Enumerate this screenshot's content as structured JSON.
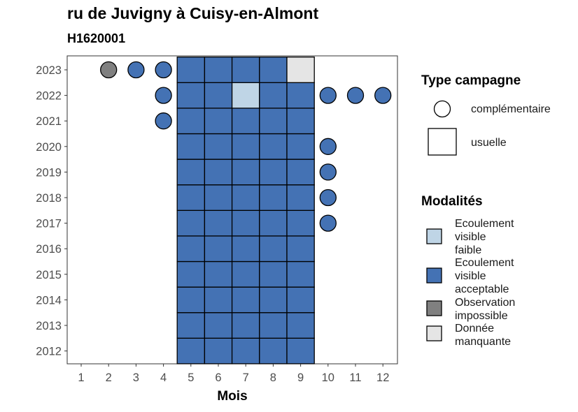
{
  "title": "ru de Juvigny à Cuisy-en-Almont",
  "subtitle": "H1620001",
  "chart_data": {
    "type": "heatmap",
    "xlabel": "Mois",
    "ylabel": "",
    "x_ticks": [
      "1",
      "2",
      "3",
      "4",
      "5",
      "6",
      "7",
      "8",
      "9",
      "10",
      "11",
      "12"
    ],
    "y_ticks": [
      "2012",
      "2013",
      "2014",
      "2015",
      "2016",
      "2017",
      "2018",
      "2019",
      "2020",
      "2021",
      "2022",
      "2023"
    ],
    "colors": {
      "Ecoulement visible faible": "#bfd5e6",
      "Ecoulement visible acceptable": "#4472b4",
      "Observation impossible": "#808080",
      "Donnée manquante": "#e5e5e5"
    },
    "cells": [
      {
        "year": 2012,
        "month": 5,
        "type": "usuelle",
        "modalite": "Ecoulement visible acceptable"
      },
      {
        "year": 2012,
        "month": 6,
        "type": "usuelle",
        "modalite": "Ecoulement visible acceptable"
      },
      {
        "year": 2012,
        "month": 7,
        "type": "usuelle",
        "modalite": "Ecoulement visible acceptable"
      },
      {
        "year": 2012,
        "month": 8,
        "type": "usuelle",
        "modalite": "Ecoulement visible acceptable"
      },
      {
        "year": 2012,
        "month": 9,
        "type": "usuelle",
        "modalite": "Ecoulement visible acceptable"
      },
      {
        "year": 2013,
        "month": 5,
        "type": "usuelle",
        "modalite": "Ecoulement visible acceptable"
      },
      {
        "year": 2013,
        "month": 6,
        "type": "usuelle",
        "modalite": "Ecoulement visible acceptable"
      },
      {
        "year": 2013,
        "month": 7,
        "type": "usuelle",
        "modalite": "Ecoulement visible acceptable"
      },
      {
        "year": 2013,
        "month": 8,
        "type": "usuelle",
        "modalite": "Ecoulement visible acceptable"
      },
      {
        "year": 2013,
        "month": 9,
        "type": "usuelle",
        "modalite": "Ecoulement visible acceptable"
      },
      {
        "year": 2014,
        "month": 5,
        "type": "usuelle",
        "modalite": "Ecoulement visible acceptable"
      },
      {
        "year": 2014,
        "month": 6,
        "type": "usuelle",
        "modalite": "Ecoulement visible acceptable"
      },
      {
        "year": 2014,
        "month": 7,
        "type": "usuelle",
        "modalite": "Ecoulement visible acceptable"
      },
      {
        "year": 2014,
        "month": 8,
        "type": "usuelle",
        "modalite": "Ecoulement visible acceptable"
      },
      {
        "year": 2014,
        "month": 9,
        "type": "usuelle",
        "modalite": "Ecoulement visible acceptable"
      },
      {
        "year": 2015,
        "month": 5,
        "type": "usuelle",
        "modalite": "Ecoulement visible acceptable"
      },
      {
        "year": 2015,
        "month": 6,
        "type": "usuelle",
        "modalite": "Ecoulement visible acceptable"
      },
      {
        "year": 2015,
        "month": 7,
        "type": "usuelle",
        "modalite": "Ecoulement visible acceptable"
      },
      {
        "year": 2015,
        "month": 8,
        "type": "usuelle",
        "modalite": "Ecoulement visible acceptable"
      },
      {
        "year": 2015,
        "month": 9,
        "type": "usuelle",
        "modalite": "Ecoulement visible acceptable"
      },
      {
        "year": 2016,
        "month": 5,
        "type": "usuelle",
        "modalite": "Ecoulement visible acceptable"
      },
      {
        "year": 2016,
        "month": 6,
        "type": "usuelle",
        "modalite": "Ecoulement visible acceptable"
      },
      {
        "year": 2016,
        "month": 7,
        "type": "usuelle",
        "modalite": "Ecoulement visible acceptable"
      },
      {
        "year": 2016,
        "month": 8,
        "type": "usuelle",
        "modalite": "Ecoulement visible acceptable"
      },
      {
        "year": 2016,
        "month": 9,
        "type": "usuelle",
        "modalite": "Ecoulement visible acceptable"
      },
      {
        "year": 2017,
        "month": 5,
        "type": "usuelle",
        "modalite": "Ecoulement visible acceptable"
      },
      {
        "year": 2017,
        "month": 6,
        "type": "usuelle",
        "modalite": "Ecoulement visible acceptable"
      },
      {
        "year": 2017,
        "month": 7,
        "type": "usuelle",
        "modalite": "Ecoulement visible acceptable"
      },
      {
        "year": 2017,
        "month": 8,
        "type": "usuelle",
        "modalite": "Ecoulement visible acceptable"
      },
      {
        "year": 2017,
        "month": 9,
        "type": "usuelle",
        "modalite": "Ecoulement visible acceptable"
      },
      {
        "year": 2017,
        "month": 10,
        "type": "complémentaire",
        "modalite": "Ecoulement visible acceptable"
      },
      {
        "year": 2018,
        "month": 5,
        "type": "usuelle",
        "modalite": "Ecoulement visible acceptable"
      },
      {
        "year": 2018,
        "month": 6,
        "type": "usuelle",
        "modalite": "Ecoulement visible acceptable"
      },
      {
        "year": 2018,
        "month": 7,
        "type": "usuelle",
        "modalite": "Ecoulement visible acceptable"
      },
      {
        "year": 2018,
        "month": 8,
        "type": "usuelle",
        "modalite": "Ecoulement visible acceptable"
      },
      {
        "year": 2018,
        "month": 9,
        "type": "usuelle",
        "modalite": "Ecoulement visible acceptable"
      },
      {
        "year": 2018,
        "month": 10,
        "type": "complémentaire",
        "modalite": "Ecoulement visible acceptable"
      },
      {
        "year": 2019,
        "month": 5,
        "type": "usuelle",
        "modalite": "Ecoulement visible acceptable"
      },
      {
        "year": 2019,
        "month": 6,
        "type": "usuelle",
        "modalite": "Ecoulement visible acceptable"
      },
      {
        "year": 2019,
        "month": 7,
        "type": "usuelle",
        "modalite": "Ecoulement visible acceptable"
      },
      {
        "year": 2019,
        "month": 8,
        "type": "usuelle",
        "modalite": "Ecoulement visible acceptable"
      },
      {
        "year": 2019,
        "month": 9,
        "type": "usuelle",
        "modalite": "Ecoulement visible acceptable"
      },
      {
        "year": 2019,
        "month": 10,
        "type": "complémentaire",
        "modalite": "Ecoulement visible acceptable"
      },
      {
        "year": 2020,
        "month": 5,
        "type": "usuelle",
        "modalite": "Ecoulement visible acceptable"
      },
      {
        "year": 2020,
        "month": 6,
        "type": "usuelle",
        "modalite": "Ecoulement visible acceptable"
      },
      {
        "year": 2020,
        "month": 7,
        "type": "usuelle",
        "modalite": "Ecoulement visible acceptable"
      },
      {
        "year": 2020,
        "month": 8,
        "type": "usuelle",
        "modalite": "Ecoulement visible acceptable"
      },
      {
        "year": 2020,
        "month": 9,
        "type": "usuelle",
        "modalite": "Ecoulement visible acceptable"
      },
      {
        "year": 2020,
        "month": 10,
        "type": "complémentaire",
        "modalite": "Ecoulement visible acceptable"
      },
      {
        "year": 2021,
        "month": 4,
        "type": "complémentaire",
        "modalite": "Ecoulement visible acceptable"
      },
      {
        "year": 2021,
        "month": 5,
        "type": "usuelle",
        "modalite": "Ecoulement visible acceptable"
      },
      {
        "year": 2021,
        "month": 6,
        "type": "usuelle",
        "modalite": "Ecoulement visible acceptable"
      },
      {
        "year": 2021,
        "month": 7,
        "type": "usuelle",
        "modalite": "Ecoulement visible acceptable"
      },
      {
        "year": 2021,
        "month": 8,
        "type": "usuelle",
        "modalite": "Ecoulement visible acceptable"
      },
      {
        "year": 2021,
        "month": 9,
        "type": "usuelle",
        "modalite": "Ecoulement visible acceptable"
      },
      {
        "year": 2022,
        "month": 4,
        "type": "complémentaire",
        "modalite": "Ecoulement visible acceptable"
      },
      {
        "year": 2022,
        "month": 5,
        "type": "usuelle",
        "modalite": "Ecoulement visible acceptable"
      },
      {
        "year": 2022,
        "month": 6,
        "type": "usuelle",
        "modalite": "Ecoulement visible acceptable"
      },
      {
        "year": 2022,
        "month": 7,
        "type": "usuelle",
        "modalite": "Ecoulement visible faible"
      },
      {
        "year": 2022,
        "month": 8,
        "type": "usuelle",
        "modalite": "Ecoulement visible acceptable"
      },
      {
        "year": 2022,
        "month": 9,
        "type": "usuelle",
        "modalite": "Ecoulement visible acceptable"
      },
      {
        "year": 2022,
        "month": 10,
        "type": "complémentaire",
        "modalite": "Ecoulement visible acceptable"
      },
      {
        "year": 2022,
        "month": 11,
        "type": "complémentaire",
        "modalite": "Ecoulement visible acceptable"
      },
      {
        "year": 2022,
        "month": 12,
        "type": "complémentaire",
        "modalite": "Ecoulement visible acceptable"
      },
      {
        "year": 2023,
        "month": 2,
        "type": "complémentaire",
        "modalite": "Observation impossible"
      },
      {
        "year": 2023,
        "month": 3,
        "type": "complémentaire",
        "modalite": "Ecoulement visible acceptable"
      },
      {
        "year": 2023,
        "month": 4,
        "type": "complémentaire",
        "modalite": "Ecoulement visible acceptable"
      },
      {
        "year": 2023,
        "month": 5,
        "type": "usuelle",
        "modalite": "Ecoulement visible acceptable"
      },
      {
        "year": 2023,
        "month": 6,
        "type": "usuelle",
        "modalite": "Ecoulement visible acceptable"
      },
      {
        "year": 2023,
        "month": 7,
        "type": "usuelle",
        "modalite": "Ecoulement visible acceptable"
      },
      {
        "year": 2023,
        "month": 8,
        "type": "usuelle",
        "modalite": "Ecoulement visible acceptable"
      },
      {
        "year": 2023,
        "month": 9,
        "type": "usuelle",
        "modalite": "Donnée manquante"
      }
    ]
  },
  "legend": {
    "type_title": "Type campagne",
    "type_items": [
      "complémentaire",
      "usuelle"
    ],
    "modalites_title": "Modalités",
    "modalites_items": [
      {
        "lines": [
          "Ecoulement",
          "visible",
          "faible"
        ],
        "color": "#bfd5e6"
      },
      {
        "lines": [
          "Ecoulement",
          "visible",
          "acceptable"
        ],
        "color": "#4472b4"
      },
      {
        "lines": [
          "Observation",
          "impossible"
        ],
        "color": "#808080"
      },
      {
        "lines": [
          "Donnée",
          "manquante"
        ],
        "color": "#e5e5e5"
      }
    ]
  }
}
